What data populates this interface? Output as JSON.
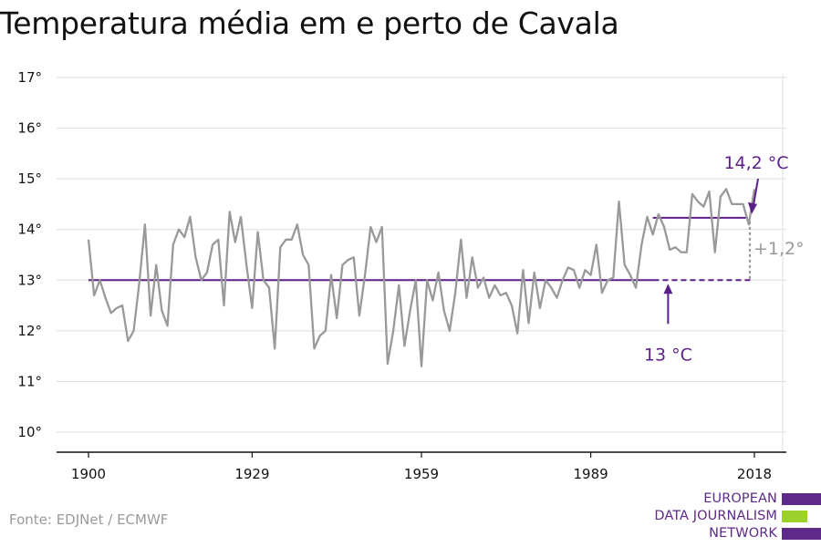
{
  "title": "Temperatura média em e perto de Cavala",
  "source": "Fonte: EDJNet / ECMWF",
  "logo": {
    "lines": [
      "EUROPEAN",
      "DATA JOURNALISM",
      "NETWORK"
    ],
    "colors": [
      "#5d2a8b",
      "#9bd12a",
      "#5d2a8b"
    ]
  },
  "colors": {
    "series": "#999999",
    "reference": "#5b1f8a",
    "change": "#999999",
    "grid": "#dddddd",
    "axis": "#111111"
  },
  "chart_data": {
    "type": "line",
    "title": "Temperatura média em e perto de Cavala",
    "xlabel": "",
    "ylabel": "",
    "xlim": [
      1900,
      2018
    ],
    "ylim": [
      10,
      17
    ],
    "yticks": [
      10,
      11,
      12,
      13,
      14,
      15,
      16,
      17
    ],
    "ytick_labels": [
      "10°",
      "11°",
      "12°",
      "13°",
      "14°",
      "15°",
      "16°",
      "17°"
    ],
    "xticks": [
      1900,
      1929,
      1959,
      1989,
      2018
    ],
    "xtick_labels": [
      "1900",
      "1929",
      "1959",
      "1989",
      "2018"
    ],
    "grid": true,
    "series": [
      {
        "x": [
          1900,
          1901,
          1902,
          1903,
          1904,
          1905,
          1906,
          1907,
          1908,
          1909,
          1910,
          1911,
          1912,
          1913,
          1914,
          1915,
          1916,
          1917,
          1918,
          1919,
          1920,
          1921,
          1922,
          1923,
          1924,
          1925,
          1926,
          1927,
          1928,
          1929,
          1930,
          1931,
          1932,
          1933,
          1934,
          1935,
          1936,
          1937,
          1938,
          1939,
          1940,
          1941,
          1942,
          1943,
          1944,
          1945,
          1946,
          1947,
          1948,
          1949,
          1950,
          1951,
          1952,
          1953,
          1954,
          1955,
          1956,
          1957,
          1958,
          1959,
          1960,
          1961,
          1962,
          1963,
          1964,
          1965,
          1966,
          1967,
          1968,
          1969,
          1970,
          1971,
          1972,
          1973,
          1974,
          1975,
          1976,
          1977,
          1978,
          1979,
          1980,
          1981,
          1982,
          1983,
          1984,
          1985,
          1986,
          1987,
          1988,
          1989,
          1990,
          1991,
          1992,
          1993,
          1994,
          1995,
          1996,
          1997,
          1998,
          1999,
          2000,
          2001,
          2002,
          2003,
          2004,
          2005,
          2006,
          2007,
          2008,
          2009,
          2010,
          2011,
          2012,
          2013,
          2014,
          2015,
          2016,
          2017,
          2018
        ],
        "values": [
          13.8,
          12.7,
          13.0,
          12.65,
          12.35,
          12.45,
          12.5,
          11.8,
          12.0,
          12.95,
          14.1,
          12.3,
          13.3,
          12.4,
          12.1,
          13.7,
          14.0,
          13.85,
          14.25,
          13.45,
          13.0,
          13.15,
          13.7,
          13.8,
          12.5,
          14.35,
          13.75,
          14.25,
          13.3,
          12.45,
          13.95,
          13.0,
          12.85,
          11.65,
          13.65,
          13.8,
          13.8,
          14.1,
          13.5,
          13.3,
          11.65,
          11.9,
          12.0,
          13.1,
          12.25,
          13.3,
          13.4,
          13.45,
          12.3,
          13.1,
          14.05,
          13.75,
          14.05,
          11.35,
          12.0,
          12.9,
          11.7,
          12.4,
          13.0,
          11.3,
          13.0,
          12.6,
          13.15,
          12.4,
          12.0,
          12.75,
          13.8,
          12.65,
          13.45,
          12.85,
          13.05,
          12.65,
          12.9,
          12.7,
          12.75,
          12.5,
          11.95,
          13.2,
          12.15,
          13.15,
          12.45,
          13.0,
          12.85,
          12.65,
          13.0,
          13.25,
          13.2,
          12.85,
          13.2,
          13.1,
          13.7,
          12.75,
          13.0,
          13.05,
          14.55,
          13.3,
          13.1,
          12.85,
          13.7,
          14.25,
          13.9,
          14.3,
          14.05,
          13.6,
          13.65,
          13.55,
          13.55,
          14.7,
          14.55,
          14.45,
          14.75,
          13.55,
          14.65,
          14.8,
          14.5,
          14.5,
          14.5,
          14.1,
          14.8
        ]
      }
    ],
    "reference_lines": [
      {
        "label": "13 °C",
        "value": 13.0,
        "x_start": 1900,
        "x_end": 1999,
        "x_dashed_end": 2018
      },
      {
        "label": "14,2 °C",
        "value": 14.23,
        "x_start": 2000,
        "x_end": 2016
      }
    ],
    "annotations": {
      "baseline_label": "13 °C",
      "recent_label": "14,2 °C",
      "change_label": "+1,2°"
    }
  }
}
